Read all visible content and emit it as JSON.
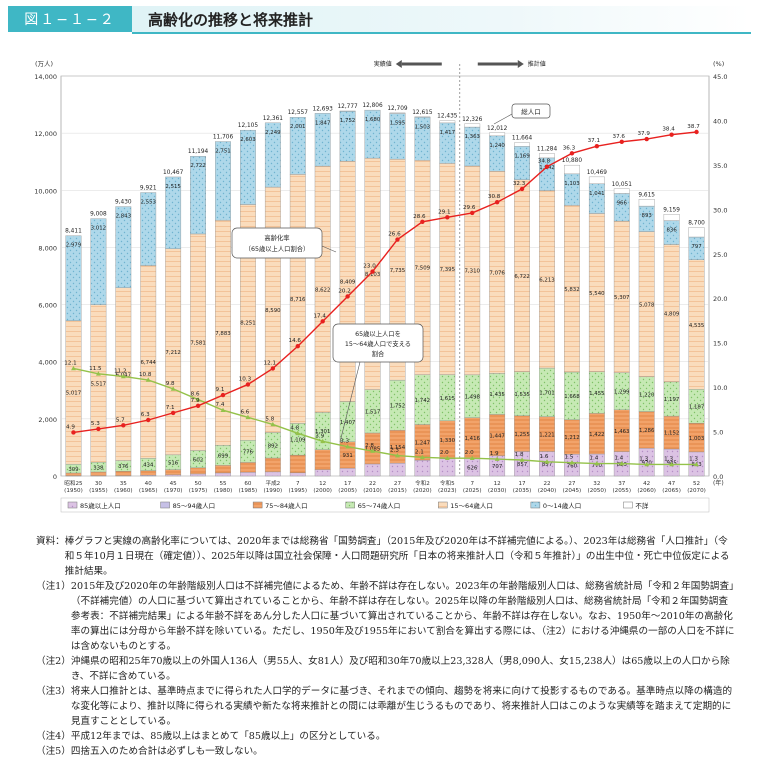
{
  "header": {
    "figure_number": "図１−１−２",
    "title": "高齢化の推移と将来推計"
  },
  "chart_data": {
    "type": "bar",
    "y_left_unit": "(万人)",
    "y_right_unit": "(%)",
    "x_unit": "(年)",
    "ylim_left": [
      0,
      14000
    ],
    "ylim_right": [
      0,
      45
    ],
    "y_left_ticks": [
      "0",
      "2,000",
      "4,000",
      "6,000",
      "8,000",
      "10,000",
      "12,000",
      "14,000"
    ],
    "y_right_ticks": [
      "0.0",
      "5.0",
      "10.0",
      "15.0",
      "20.0",
      "25.0",
      "30.0",
      "35.0",
      "40.0",
      "45.0"
    ],
    "categories": [
      [
        "昭和25",
        "(1950)"
      ],
      [
        "30",
        "(1955)"
      ],
      [
        "35",
        "(1960)"
      ],
      [
        "40",
        "(1965)"
      ],
      [
        "45",
        "(1970)"
      ],
      [
        "50",
        "(1975)"
      ],
      [
        "55",
        "(1980)"
      ],
      [
        "60",
        "(1985)"
      ],
      [
        "平成2",
        "(1990)"
      ],
      [
        "7",
        "(1995)"
      ],
      [
        "12",
        "(2000)"
      ],
      [
        "17",
        "(2005)"
      ],
      [
        "22",
        "(2010)"
      ],
      [
        "27",
        "(2015)"
      ],
      [
        "令和2",
        "(2020)"
      ],
      [
        "令和5",
        "(2023)"
      ],
      [
        "7",
        "(2025)"
      ],
      [
        "12",
        "(2030)"
      ],
      [
        "17",
        "(2035)"
      ],
      [
        "22",
        "(2040)"
      ],
      [
        "27",
        "(2045)"
      ],
      [
        "32",
        "(2050)"
      ],
      [
        "37",
        "(2055)"
      ],
      [
        "42",
        "(2060)"
      ],
      [
        "47",
        "(2065)"
      ],
      [
        "52",
        "(2070)"
      ]
    ],
    "totals": [
      "8,411",
      "9,008",
      "9,430",
      "9,921",
      "10,467",
      "11,194",
      "11,706",
      "12,105",
      "12,361",
      "12,557",
      "12,693",
      "12,777",
      "12,806",
      "12,709",
      "12,615",
      "12,435",
      "12,326",
      "12,012",
      "11,664",
      "11,284",
      "10,880",
      "10,469",
      "10,051",
      "9,615",
      "9,159",
      "8,700"
    ],
    "series": [
      {
        "name": "0～14歳人口",
        "color": "#aed8ea",
        "values": [
          2979,
          3012,
          2843,
          2553,
          2515,
          2722,
          2751,
          2603,
          2249,
          2001,
          1847,
          1752,
          1680,
          1595,
          1503,
          1417,
          1363,
          1240,
          1169,
          1142,
          1103,
          1041,
          966,
          893,
          836,
          797
        ]
      },
      {
        "name": "15～64歳人口",
        "color": "#fadcbc",
        "values": [
          5017,
          5517,
          6047,
          6744,
          7212,
          7581,
          7883,
          8251,
          8590,
          8716,
          8622,
          8409,
          8103,
          7735,
          7509,
          7395,
          7310,
          7076,
          6722,
          6213,
          5832,
          5540,
          5307,
          5078,
          4809,
          4535
        ]
      },
      {
        "name": "65～74歳人口",
        "color": "#c6e9b4",
        "values": [
          309,
          338,
          376,
          434,
          516,
          602,
          699,
          776,
          892,
          1109,
          1301,
          1407,
          1517,
          1752,
          1742,
          1615,
          1498,
          1435,
          1535,
          1701,
          1668,
          1455,
          1299,
          1220,
          1197,
          1187
        ]
      },
      {
        "name": "75～84歳人口",
        "color": "#f2a36a",
        "values": [
          95,
          129,
          151,
          162,
          184,
          217,
          266,
          346,
          486,
          621,
          700,
          931,
          1085,
          1154,
          1247,
          1330,
          1416,
          1447,
          1255,
          1221,
          1212,
          1422,
          1463,
          1286,
          1152,
          1003
        ]
      },
      {
        "name": "85歳以上人口",
        "color": "#dcc3e4",
        "values": [
          11,
          12,
          13,
          28,
          40,
          72,
          107,
          129,
          144,
          110,
          223,
          269,
          421,
          450,
          555,
          602,
          626,
          707,
          857,
          857,
          760,
          770,
          853,
          970,
          945,
          843
        ]
      },
      {
        "name": "不詳",
        "color": "#ffffff",
        "values": [
          0,
          0,
          0,
          0,
          0,
          0,
          0,
          0,
          0,
          0,
          0,
          9,
          0,
          23,
          15,
          76,
          113,
          107,
          126,
          150,
          305,
          241,
          163,
          238,
          220,
          335
        ]
      }
    ],
    "labels_show": {
      "0～14歳人口": "all",
      "15～64歳人口": "all",
      "65～74歳人口": "all",
      "75～84歳人口": [
        11,
        12,
        13,
        14,
        15,
        16,
        17,
        18,
        19,
        20,
        21,
        22,
        23,
        24,
        25
      ],
      "85歳以上人口": [
        16,
        17,
        18,
        19,
        20,
        21,
        22,
        23,
        24,
        25
      ]
    },
    "aging_rate": {
      "name": "高齢化率（65歳以上人口割合）",
      "color": "#e8211f",
      "values": [
        4.9,
        5.3,
        5.7,
        6.3,
        7.1,
        7.9,
        9.1,
        10.3,
        12.1,
        14.6,
        17.4,
        20.2,
        23.0,
        26.6,
        28.6,
        29.1,
        29.6,
        30.8,
        32.3,
        34.8,
        36.3,
        37.1,
        37.6,
        37.9,
        38.4,
        38.7
      ],
      "labels": [
        "4.9",
        "5.3",
        "5.7",
        "6.3",
        "7.1",
        "7.9",
        "9.1",
        "10.3",
        "12.1",
        "14.6",
        "17.4",
        "20.2",
        "23.0",
        "26.6",
        "28.6",
        "29.1",
        "29.6",
        "30.8",
        "32.3",
        "34.8",
        "36.3",
        "37.1",
        "37.6",
        "37.9",
        "38.4",
        "38.7"
      ]
    },
    "support_ratio": {
      "name": "65歳以上人口を15～64歳人口で支える割合",
      "color": "#94c24a",
      "values": [
        12.1,
        11.5,
        11.2,
        10.8,
        9.8,
        8.6,
        7.4,
        6.6,
        5.8,
        4.8,
        3.9,
        3.3,
        2.8,
        2.3,
        2.1,
        2.0,
        2.0,
        1.9,
        1.8,
        1.6,
        1.5,
        1.4,
        1.4,
        1.3,
        1.3,
        1.3
      ],
      "labels": [
        "12.1",
        "11.5",
        "11.2",
        "10.8",
        "9.8",
        "8.6",
        "7.4",
        "6.6",
        "5.8",
        "4.8",
        "3.9",
        "3.3",
        "2.8",
        "2.3",
        "2.1",
        "2.0",
        "2.0",
        "1.9",
        "1.8",
        "1.6",
        "1.5",
        "1.4",
        "1.4",
        "1.3",
        "1.3",
        "1.3"
      ]
    },
    "annotations": {
      "actual": "実績値",
      "projected": "推計値",
      "total": "総人口",
      "aging_rate": [
        "高齢化率",
        "（65歳以上人口割合）"
      ],
      "support": [
        "65歳以上人口を",
        "15～64歳人口で支える",
        "割合"
      ]
    },
    "legend_order": [
      "85歳以上人口",
      "85～94歳人口",
      "75～84歳人口",
      "65～74歳人口",
      "15～64歳人口",
      "0～14歳人口",
      "不詳"
    ],
    "legend_colors": {
      "85歳以上人口": "#dcc3e4",
      "85～94歳人口": "#c6c0e6",
      "75～84歳人口": "#f2a36a",
      "65～74歳人口": "#c6e9b4",
      "15～64歳人口": "#fadcbc",
      "0～14歳人口": "#aed8ea",
      "不詳": "#ffffff"
    }
  },
  "notes": [
    {
      "tag": "資料：",
      "text": "棒グラフと実線の高齢化率については、2020年までは総務省「国勢調査」（2015年及び2020年は不詳補完値による。）、2023年は総務省「人口推計」（令和５年10月１日現在（確定値））、2025年以降は国立社会保障・人口問題研究所「日本の将来推計人口（令和５年推計）」の出生中位・死亡中位仮定による推計結果。"
    },
    {
      "tag": "（注1）",
      "text": "2015年及び2020年の年齢階級別人口は不詳補完値によるため、年齢不詳は存在しない。2023年の年齢階級別人口は、総務省統計局「令和２年国勢調査」（不詳補完値）の人口に基づいて算出されていることから、年齢不詳は存在しない。2025年以降の年齢階級別人口は、総務省統計局「令和２年国勢調査　参考表：不詳補完結果」による年齢不詳をあん分した人口に基づいて算出されていることから、年齢不詳は存在しない。なお、1950年～2010年の高齢化率の算出には分母から年齢不詳を除いている。ただし、1950年及び1955年において割合を算出する際には、（注2）における沖縄県の一部の人口を不詳には含めないものとする。"
    },
    {
      "tag": "（注2）",
      "text": "沖縄県の昭和25年70歳以上の外国人136人（男55人、女81人）及び昭和30年70歳以上23,328人（男8,090人、女15,238人）は65歳以上の人口から除き、不詳に含めている。"
    },
    {
      "tag": "（注3）",
      "text": "将来人口推計とは、基準時点までに得られた人口学的データに基づき、それまでの傾向、趨勢を将来に向けて投影するものである。基準時点以降の構造的な変化等により、推計以降に得られる実績や新たな将来推計との間には乖離が生じうるものであり、将来推計人口はこのような実績等を踏まえて定期的に見直すこととしている。"
    },
    {
      "tag": "（注4）",
      "text": "平成12年までは、85歳以上はまとめて「85歳以上」の区分としている。"
    },
    {
      "tag": "（注5）",
      "text": "四捨五入のため合計は必ずしも一致しない。"
    }
  ]
}
